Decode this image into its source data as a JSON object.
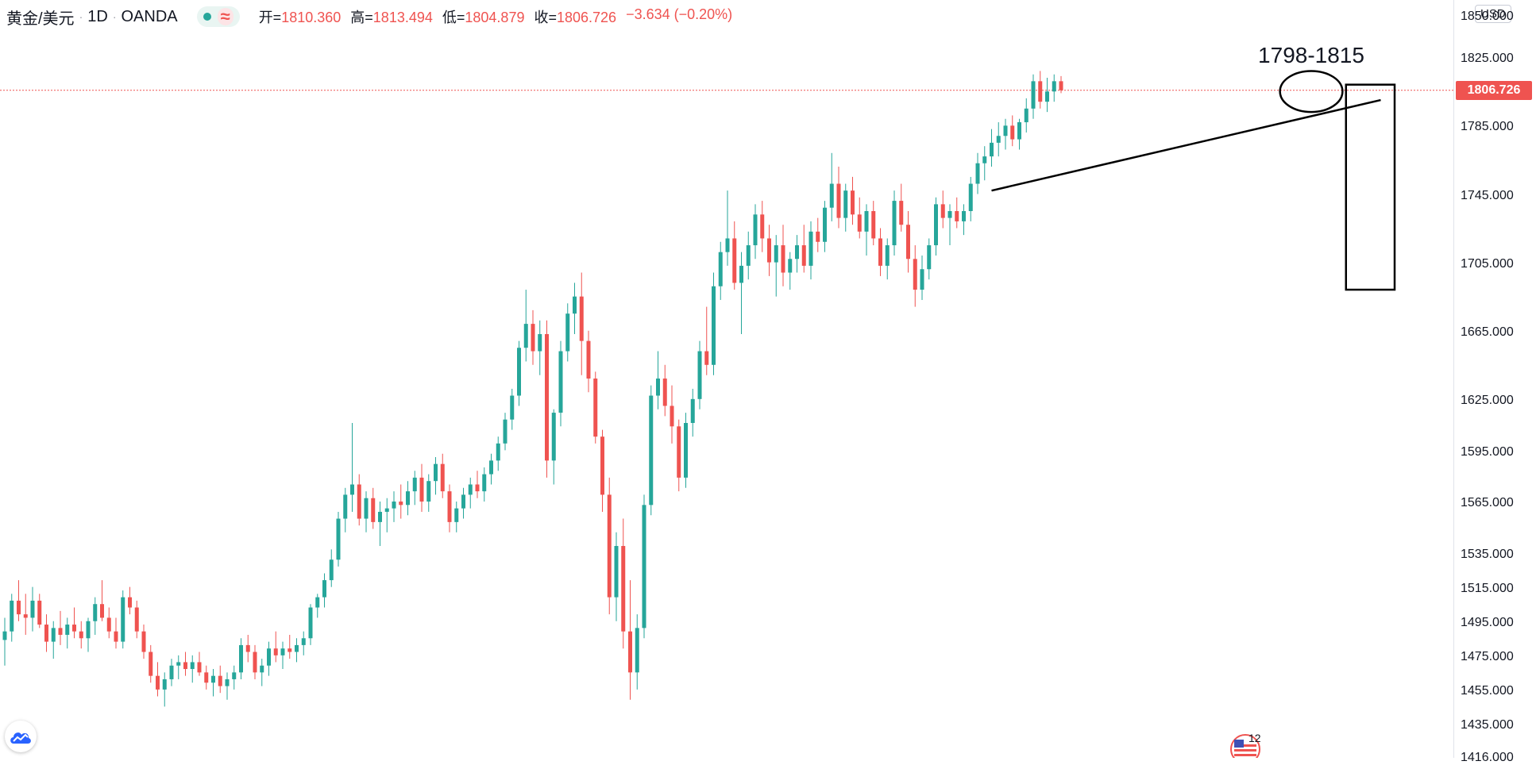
{
  "header": {
    "symbol": "黄金/美元",
    "interval": "1D",
    "exchange": "OANDA",
    "separator": "·",
    "status_wave_glyph": "≈",
    "ohlc": {
      "open_label": "开=",
      "open": "1810.360",
      "high_label": "高=",
      "high": "1813.494",
      "low_label": "低=",
      "low": "1804.879",
      "close_label": "收=",
      "close": "1806.726",
      "change": "−3.634 (−0.20%)"
    }
  },
  "axis": {
    "currency": "USD",
    "last_price": "1806.726",
    "ticks": [
      "1850.000",
      "1825.000",
      "1806.726",
      "1785.000",
      "1745.000",
      "1705.000",
      "1665.000",
      "1625.000",
      "1595.000",
      "1565.000",
      "1535.000",
      "1515.000",
      "1495.000",
      "1475.000",
      "1455.000",
      "1435.000",
      "1416.000"
    ],
    "tick_values": [
      1850,
      1825,
      1785,
      1745,
      1705,
      1665,
      1625,
      1595,
      1565,
      1535,
      1515,
      1495,
      1475,
      1455,
      1435,
      1416
    ]
  },
  "annotation": {
    "range_label": "1798-1815"
  },
  "event": {
    "count": "12"
  },
  "colors": {
    "up": "#26a69a",
    "down": "#ef5350",
    "drawing": "#000000",
    "last_price_line": "#ef5350"
  },
  "chart_data": {
    "type": "candlestick",
    "title": "黄金/美元 · 1D · OANDA",
    "xlabel": "",
    "ylabel": "",
    "ylim": [
      1416,
      1850
    ],
    "last_price": 1806.726,
    "candles": [
      [
        1485,
        1498,
        1470,
        1490
      ],
      [
        1490,
        1512,
        1484,
        1508
      ],
      [
        1508,
        1520,
        1496,
        1500
      ],
      [
        1500,
        1512,
        1488,
        1498
      ],
      [
        1498,
        1516,
        1490,
        1508
      ],
      [
        1508,
        1512,
        1492,
        1494
      ],
      [
        1494,
        1500,
        1478,
        1484
      ],
      [
        1484,
        1496,
        1474,
        1492
      ],
      [
        1492,
        1502,
        1482,
        1488
      ],
      [
        1488,
        1498,
        1480,
        1494
      ],
      [
        1494,
        1504,
        1486,
        1490
      ],
      [
        1490,
        1496,
        1480,
        1486
      ],
      [
        1486,
        1498,
        1478,
        1496
      ],
      [
        1496,
        1510,
        1488,
        1506
      ],
      [
        1506,
        1520,
        1496,
        1498
      ],
      [
        1498,
        1504,
        1486,
        1490
      ],
      [
        1490,
        1498,
        1480,
        1484
      ],
      [
        1484,
        1514,
        1480,
        1510
      ],
      [
        1510,
        1516,
        1500,
        1504
      ],
      [
        1504,
        1508,
        1486,
        1490
      ],
      [
        1490,
        1494,
        1474,
        1478
      ],
      [
        1478,
        1482,
        1460,
        1464
      ],
      [
        1464,
        1472,
        1452,
        1456
      ],
      [
        1456,
        1466,
        1446,
        1462
      ],
      [
        1462,
        1474,
        1458,
        1470
      ],
      [
        1470,
        1476,
        1462,
        1472
      ],
      [
        1472,
        1478,
        1464,
        1468
      ],
      [
        1468,
        1476,
        1460,
        1472
      ],
      [
        1472,
        1478,
        1464,
        1466
      ],
      [
        1466,
        1470,
        1456,
        1460
      ],
      [
        1460,
        1468,
        1452,
        1464
      ],
      [
        1464,
        1470,
        1454,
        1458
      ],
      [
        1458,
        1466,
        1450,
        1462
      ],
      [
        1462,
        1470,
        1456,
        1466
      ],
      [
        1466,
        1486,
        1462,
        1482
      ],
      [
        1482,
        1488,
        1472,
        1478
      ],
      [
        1478,
        1482,
        1462,
        1466
      ],
      [
        1466,
        1474,
        1458,
        1470
      ],
      [
        1470,
        1484,
        1464,
        1480
      ],
      [
        1480,
        1490,
        1472,
        1476
      ],
      [
        1476,
        1484,
        1468,
        1480
      ],
      [
        1480,
        1488,
        1474,
        1478
      ],
      [
        1478,
        1486,
        1472,
        1482
      ],
      [
        1482,
        1490,
        1476,
        1486
      ],
      [
        1486,
        1506,
        1482,
        1504
      ],
      [
        1504,
        1512,
        1498,
        1510
      ],
      [
        1510,
        1524,
        1504,
        1520
      ],
      [
        1520,
        1538,
        1516,
        1532
      ],
      [
        1532,
        1560,
        1528,
        1556
      ],
      [
        1556,
        1574,
        1548,
        1570
      ],
      [
        1570,
        1612,
        1560,
        1576
      ],
      [
        1576,
        1582,
        1552,
        1556
      ],
      [
        1556,
        1572,
        1548,
        1568
      ],
      [
        1568,
        1574,
        1550,
        1554
      ],
      [
        1554,
        1566,
        1540,
        1560
      ],
      [
        1560,
        1568,
        1548,
        1562
      ],
      [
        1562,
        1572,
        1554,
        1566
      ],
      [
        1566,
        1576,
        1556,
        1564
      ],
      [
        1564,
        1578,
        1558,
        1572
      ],
      [
        1572,
        1584,
        1564,
        1580
      ],
      [
        1580,
        1588,
        1560,
        1566
      ],
      [
        1566,
        1582,
        1560,
        1578
      ],
      [
        1578,
        1592,
        1570,
        1588
      ],
      [
        1588,
        1594,
        1568,
        1572
      ],
      [
        1572,
        1576,
        1548,
        1554
      ],
      [
        1554,
        1566,
        1548,
        1562
      ],
      [
        1562,
        1574,
        1556,
        1570
      ],
      [
        1570,
        1580,
        1562,
        1576
      ],
      [
        1576,
        1584,
        1568,
        1572
      ],
      [
        1572,
        1586,
        1566,
        1582
      ],
      [
        1582,
        1594,
        1576,
        1590
      ],
      [
        1590,
        1604,
        1584,
        1600
      ],
      [
        1600,
        1618,
        1596,
        1614
      ],
      [
        1614,
        1632,
        1608,
        1628
      ],
      [
        1628,
        1660,
        1622,
        1656
      ],
      [
        1656,
        1690,
        1648,
        1670
      ],
      [
        1670,
        1678,
        1646,
        1654
      ],
      [
        1654,
        1672,
        1640,
        1664
      ],
      [
        1664,
        1672,
        1580,
        1590
      ],
      [
        1590,
        1620,
        1576,
        1618
      ],
      [
        1618,
        1660,
        1610,
        1654
      ],
      [
        1654,
        1682,
        1648,
        1676
      ],
      [
        1676,
        1694,
        1664,
        1686
      ],
      [
        1686,
        1700,
        1640,
        1660
      ],
      [
        1660,
        1666,
        1630,
        1638
      ],
      [
        1638,
        1642,
        1600,
        1604
      ],
      [
        1604,
        1608,
        1560,
        1570
      ],
      [
        1570,
        1580,
        1500,
        1510
      ],
      [
        1510,
        1548,
        1496,
        1540
      ],
      [
        1540,
        1556,
        1480,
        1490
      ],
      [
        1490,
        1520,
        1450,
        1466
      ],
      [
        1466,
        1500,
        1456,
        1492
      ],
      [
        1492,
        1570,
        1486,
        1564
      ],
      [
        1564,
        1634,
        1558,
        1628
      ],
      [
        1628,
        1654,
        1620,
        1638
      ],
      [
        1638,
        1646,
        1616,
        1622
      ],
      [
        1622,
        1634,
        1600,
        1610
      ],
      [
        1610,
        1614,
        1572,
        1580
      ],
      [
        1580,
        1618,
        1574,
        1612
      ],
      [
        1612,
        1632,
        1604,
        1626
      ],
      [
        1626,
        1660,
        1620,
        1654
      ],
      [
        1654,
        1680,
        1640,
        1646
      ],
      [
        1646,
        1700,
        1640,
        1692
      ],
      [
        1692,
        1718,
        1684,
        1712
      ],
      [
        1712,
        1748,
        1704,
        1720
      ],
      [
        1720,
        1730,
        1690,
        1694
      ],
      [
        1694,
        1712,
        1664,
        1704
      ],
      [
        1704,
        1724,
        1696,
        1716
      ],
      [
        1716,
        1740,
        1708,
        1734
      ],
      [
        1734,
        1742,
        1712,
        1720
      ],
      [
        1720,
        1728,
        1698,
        1706
      ],
      [
        1706,
        1722,
        1686,
        1716
      ],
      [
        1716,
        1728,
        1692,
        1700
      ],
      [
        1700,
        1712,
        1690,
        1708
      ],
      [
        1708,
        1722,
        1700,
        1716
      ],
      [
        1716,
        1728,
        1700,
        1704
      ],
      [
        1704,
        1730,
        1696,
        1724
      ],
      [
        1724,
        1732,
        1712,
        1718
      ],
      [
        1718,
        1742,
        1712,
        1738
      ],
      [
        1738,
        1770,
        1730,
        1752
      ],
      [
        1752,
        1762,
        1726,
        1732
      ],
      [
        1732,
        1752,
        1724,
        1748
      ],
      [
        1748,
        1756,
        1728,
        1734
      ],
      [
        1734,
        1744,
        1720,
        1724
      ],
      [
        1724,
        1740,
        1710,
        1736
      ],
      [
        1736,
        1742,
        1716,
        1720
      ],
      [
        1720,
        1726,
        1698,
        1704
      ],
      [
        1704,
        1720,
        1696,
        1716
      ],
      [
        1716,
        1748,
        1710,
        1742
      ],
      [
        1742,
        1752,
        1724,
        1728
      ],
      [
        1728,
        1736,
        1700,
        1708
      ],
      [
        1708,
        1716,
        1680,
        1690
      ],
      [
        1690,
        1710,
        1684,
        1702
      ],
      [
        1702,
        1720,
        1696,
        1716
      ],
      [
        1716,
        1744,
        1710,
        1740
      ],
      [
        1740,
        1748,
        1726,
        1732
      ],
      [
        1732,
        1740,
        1716,
        1736
      ],
      [
        1736,
        1744,
        1726,
        1730
      ],
      [
        1730,
        1740,
        1722,
        1736
      ],
      [
        1736,
        1756,
        1730,
        1752
      ],
      [
        1752,
        1770,
        1746,
        1764
      ],
      [
        1764,
        1774,
        1754,
        1768
      ],
      [
        1768,
        1784,
        1762,
        1776
      ],
      [
        1776,
        1788,
        1768,
        1780
      ],
      [
        1780,
        1790,
        1772,
        1786
      ],
      [
        1786,
        1792,
        1774,
        1778
      ],
      [
        1778,
        1790,
        1772,
        1788
      ],
      [
        1788,
        1802,
        1782,
        1796
      ],
      [
        1796,
        1816,
        1790,
        1812
      ],
      [
        1812,
        1818,
        1796,
        1800
      ],
      [
        1800,
        1814,
        1794,
        1806
      ],
      [
        1806,
        1816,
        1800,
        1812
      ],
      [
        1812,
        1815,
        1805,
        1806.726
      ]
    ],
    "annotations": [
      {
        "type": "trendline",
        "from": {
          "bar": 142,
          "price": 1748
        },
        "to": {
          "bar": 198,
          "price": 1801
        }
      },
      {
        "type": "rectangle",
        "from": {
          "bar": 193,
          "price": 1810
        },
        "to": {
          "bar": 200,
          "price": 1690
        }
      },
      {
        "type": "ellipse",
        "center": {
          "bar": 188,
          "price": 1806
        },
        "radius_bars": 4.5,
        "radius_price": 12
      }
    ]
  }
}
